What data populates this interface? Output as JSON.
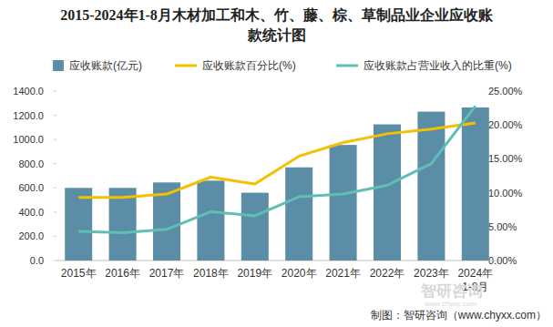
{
  "chart_data": {
    "type": "bar",
    "title": "2015-2024年1-8月木材加工和木、竹、藤、棕、草制品业企业应收账款统计图",
    "categories": [
      "2015年",
      "2016年",
      "2017年",
      "2018年",
      "2019年",
      "2020年",
      "2021年",
      "2022年",
      "2023年",
      "2024年\n1-8月"
    ],
    "series": [
      {
        "name": "应收账款(亿元)",
        "type": "bar",
        "color": "#5b8ea6",
        "values": [
          600,
          600,
          645,
          660,
          560,
          770,
          955,
          1125,
          1230,
          1265
        ]
      },
      {
        "name": "应收账款百分比(%)",
        "type": "line",
        "axis": "y2",
        "color": "#f5c000",
        "values": [
          9.3,
          9.3,
          9.8,
          12.3,
          11.3,
          15.4,
          17.4,
          18.7,
          19.4,
          20.3
        ]
      },
      {
        "name": "应收账款占营业收入的比重(%)",
        "type": "line",
        "axis": "y2",
        "color": "#5fbfb4",
        "values": [
          4.3,
          4.1,
          4.6,
          7.2,
          6.6,
          9.4,
          9.8,
          11.1,
          14.3,
          22.8
        ]
      }
    ],
    "ylim": [
      0,
      1400
    ],
    "yticks": [
      {
        "value": 0,
        "label": "0.0"
      },
      {
        "value": 200,
        "label": "200.0"
      },
      {
        "value": 400,
        "label": "400.0"
      },
      {
        "value": 600,
        "label": "600.0"
      },
      {
        "value": 800,
        "label": "800.0"
      },
      {
        "value": 1000,
        "label": "1000.0"
      },
      {
        "value": 1200,
        "label": "1200.0"
      },
      {
        "value": 1400,
        "label": "1400.0"
      }
    ],
    "y2lim": [
      0,
      25
    ],
    "y2ticks": [
      {
        "value": 0,
        "label": "0.00%"
      },
      {
        "value": 5,
        "label": "5.00%"
      },
      {
        "value": 10,
        "label": "10.00%"
      },
      {
        "value": 15,
        "label": "15.00%"
      },
      {
        "value": 20,
        "label": "20.00%"
      },
      {
        "value": 25,
        "label": "25.00%"
      }
    ],
    "grid": false,
    "legend": "top",
    "source": "制图：智研咨询（www.chyxx.com）",
    "watermark": [
      "智研咨询",
      "www.chyxx.com"
    ]
  }
}
